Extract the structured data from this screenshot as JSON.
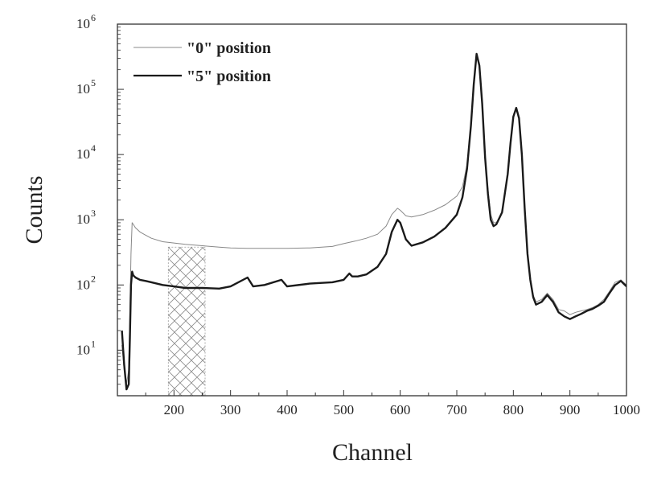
{
  "chart_data": {
    "type": "line",
    "title": "",
    "xlabel": "Channel",
    "ylabel": "Counts",
    "xlim": [
      100,
      1000
    ],
    "ylim": [
      2,
      1000000
    ],
    "yscale": "log",
    "grid": false,
    "legend_position": "top-left",
    "x_ticks": [
      "200",
      "300",
      "400",
      "500",
      "600",
      "700",
      "800",
      "900",
      "1000"
    ],
    "y_ticks": [
      {
        "base": "10",
        "exp": "1"
      },
      {
        "base": "10",
        "exp": "2"
      },
      {
        "base": "10",
        "exp": "3"
      },
      {
        "base": "10",
        "exp": "4"
      },
      {
        "base": "10",
        "exp": "5"
      },
      {
        "base": "10",
        "exp": "6"
      }
    ],
    "shaded_region": {
      "x": [
        190,
        255
      ],
      "y": [
        2,
        380
      ],
      "pattern": "cross-hatch"
    },
    "series": [
      {
        "name": "\"0\" position",
        "color": "#888888",
        "style": "thin",
        "x": [
          108,
          112,
          116,
          120,
          124,
          126,
          128,
          132,
          140,
          150,
          160,
          180,
          200,
          220,
          250,
          280,
          300,
          330,
          360,
          400,
          440,
          480,
          500,
          520,
          540,
          560,
          575,
          585,
          595,
          600,
          610,
          620,
          640,
          660,
          680,
          700,
          710,
          718,
          725,
          730,
          735,
          740,
          745,
          750,
          755,
          760,
          765,
          770,
          780,
          790,
          795,
          800,
          805,
          810,
          815,
          820,
          825,
          830,
          835,
          840,
          850,
          860,
          870,
          880,
          890,
          900,
          910,
          920,
          930,
          940,
          950,
          960,
          970,
          980,
          990,
          1000
        ],
        "y": [
          12,
          5,
          3,
          5,
          300,
          900,
          850,
          750,
          650,
          580,
          520,
          460,
          440,
          420,
          400,
          380,
          370,
          365,
          365,
          365,
          370,
          390,
          430,
          470,
          520,
          600,
          800,
          1200,
          1500,
          1400,
          1150,
          1100,
          1200,
          1400,
          1700,
          2300,
          3200,
          7000,
          30000,
          120000,
          350000,
          250000,
          70000,
          10000,
          3000,
          1200,
          900,
          900,
          1300,
          5000,
          15000,
          38000,
          50000,
          35000,
          10000,
          1500,
          300,
          130,
          70,
          55,
          60,
          75,
          60,
          42,
          40,
          35,
          38,
          40,
          42,
          45,
          50,
          60,
          80,
          110,
          120,
          100
        ]
      },
      {
        "name": "\"5\" position",
        "color": "#1a1a1a",
        "style": "thick",
        "x": [
          108,
          112,
          116,
          120,
          122,
          124,
          126,
          128,
          132,
          140,
          150,
          160,
          180,
          200,
          220,
          250,
          280,
          300,
          330,
          340,
          360,
          390,
          400,
          440,
          480,
          500,
          510,
          515,
          525,
          540,
          560,
          575,
          585,
          595,
          600,
          610,
          620,
          640,
          660,
          680,
          700,
          710,
          718,
          725,
          730,
          735,
          740,
          745,
          750,
          755,
          760,
          765,
          770,
          780,
          790,
          795,
          800,
          805,
          810,
          815,
          820,
          825,
          830,
          835,
          840,
          850,
          860,
          870,
          880,
          890,
          900,
          910,
          920,
          930,
          940,
          950,
          960,
          970,
          980,
          990,
          1000
        ],
        "y": [
          20,
          6,
          2.5,
          3,
          15,
          100,
          160,
          140,
          130,
          120,
          115,
          110,
          100,
          95,
          90,
          90,
          88,
          95,
          130,
          95,
          100,
          120,
          95,
          105,
          110,
          120,
          150,
          135,
          135,
          145,
          190,
          300,
          650,
          1000,
          900,
          500,
          400,
          450,
          550,
          750,
          1200,
          2200,
          6000,
          28000,
          120000,
          350000,
          230000,
          60000,
          9000,
          2500,
          1000,
          800,
          850,
          1300,
          5000,
          15000,
          38000,
          52000,
          36000,
          10000,
          1500,
          300,
          120,
          65,
          50,
          55,
          70,
          55,
          38,
          33,
          30,
          33,
          36,
          40,
          43,
          48,
          55,
          75,
          100,
          115,
          95
        ]
      }
    ]
  }
}
